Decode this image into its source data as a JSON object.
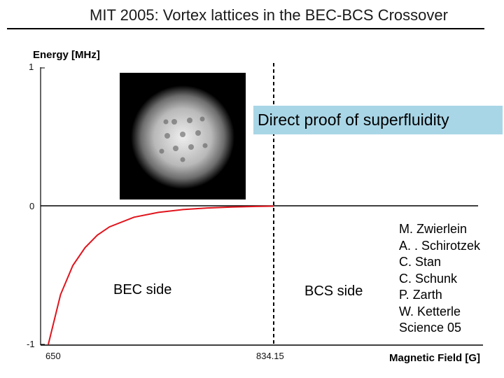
{
  "title": "MIT 2005: Vortex lattices in the BEC-BCS Crossover",
  "callout": "Direct proof of superfluidity",
  "labels": {
    "bec_side": "BEC side",
    "bcs_side": "BCS side"
  },
  "authors": [
    "M. Zwierlein",
    "A. . Schirotzek",
    "C. Stan",
    "C. Schunk",
    "P. Zarth",
    "W. Ketterle",
    "Science 05"
  ],
  "colors": {
    "curve": "#e0141c",
    "callout_bg": "#a9d6e6"
  },
  "chart_data": {
    "type": "line",
    "ylabel": "Energy [MHz]",
    "xlabel": "Magnetic Field [G]",
    "y_ticks": [
      "1",
      "0",
      "-1"
    ],
    "x_ticks": [
      "650",
      "834.15"
    ],
    "xlim": [
      650,
      834.15
    ],
    "ylim": [
      -1,
      1
    ],
    "resonance_x": 834.15,
    "series": [
      {
        "x": [
          650,
          660,
          670,
          680,
          690,
          700,
          720,
          740,
          760,
          780,
          800,
          820,
          834.15
        ],
        "y": [
          -1.0,
          -0.64,
          -0.43,
          -0.3,
          -0.21,
          -0.15,
          -0.08,
          -0.045,
          -0.025,
          -0.013,
          -0.006,
          -0.002,
          0.0
        ]
      }
    ]
  }
}
